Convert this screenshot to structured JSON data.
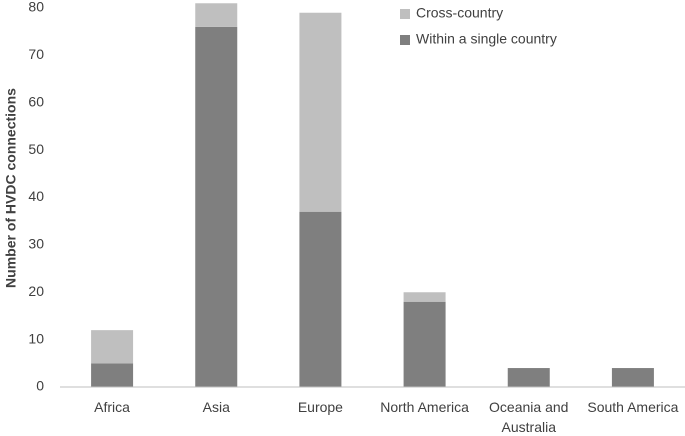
{
  "chart_data": {
    "type": "stacked_bar",
    "y_label": "Number of HVDC connections",
    "categories": [
      "Africa",
      "Asia",
      "Europe",
      "North America",
      "Oceania and Australia",
      "South America"
    ],
    "series": [
      {
        "name": "Within a single country",
        "color": "#7f7f7f",
        "values": [
          5,
          76,
          37,
          18,
          4,
          4
        ]
      },
      {
        "name": "Cross-country",
        "color": "#bfbfbf",
        "values": [
          7,
          5,
          42,
          2,
          0,
          0
        ]
      }
    ],
    "ylim": [
      0,
      80
    ],
    "yticks": [
      0,
      10,
      20,
      30,
      40,
      50,
      60,
      70,
      80
    ],
    "grid": false
  }
}
